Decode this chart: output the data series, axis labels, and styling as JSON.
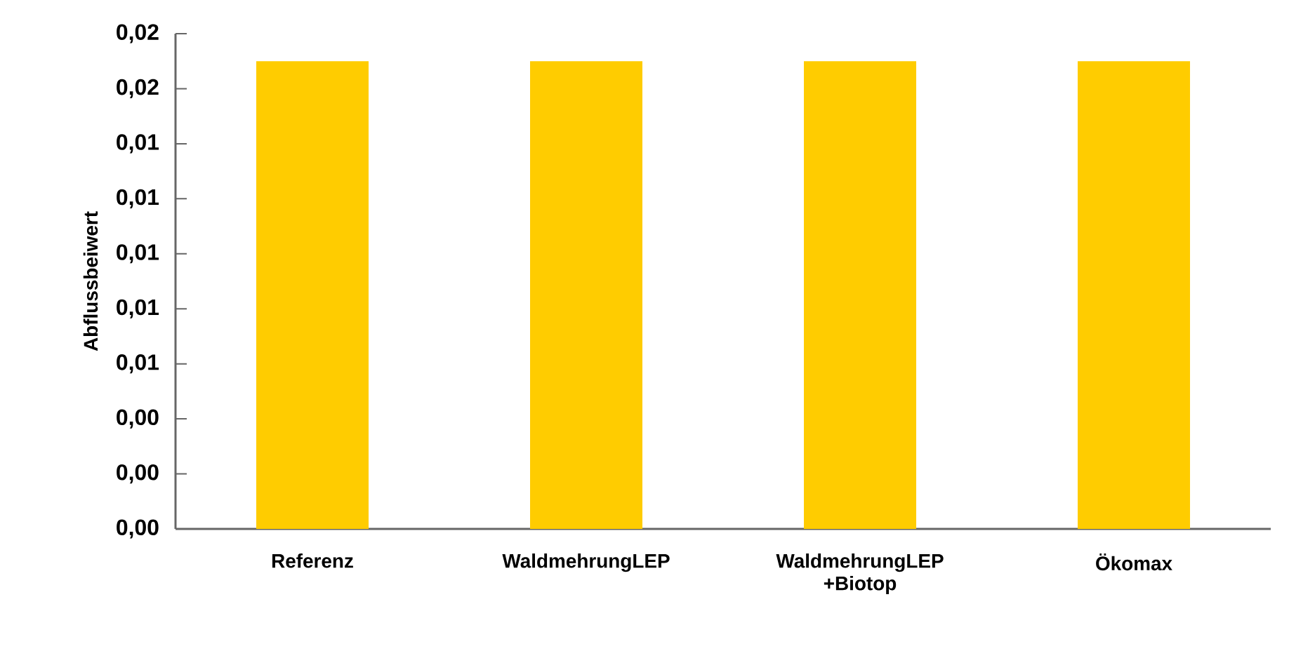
{
  "chart_data": {
    "type": "bar",
    "ylabel": "Abflussbeiwert",
    "categories": [
      "Referenz",
      "WaldmehrungLEP",
      "WaldmehrungLEP +Biotop",
      "Ökomax"
    ],
    "values": [
      0.017,
      0.017,
      0.017,
      0.017
    ],
    "color": "#ffcc00",
    "ylim": [
      0,
      0.018
    ],
    "yticks": [
      {
        "value": 0,
        "label": "0,00"
      },
      {
        "value": 0.002,
        "label": "0,00"
      },
      {
        "value": 0.004,
        "label": "0,00"
      },
      {
        "value": 0.006,
        "label": "0,01"
      },
      {
        "value": 0.008,
        "label": "0,01"
      },
      {
        "value": 0.01,
        "label": "0,01"
      },
      {
        "value": 0.012,
        "label": "0,01"
      },
      {
        "value": 0.014,
        "label": "0,01"
      },
      {
        "value": 0.016,
        "label": "0,02"
      },
      {
        "value": 0.018,
        "label": "0,02"
      }
    ],
    "grid": false
  }
}
